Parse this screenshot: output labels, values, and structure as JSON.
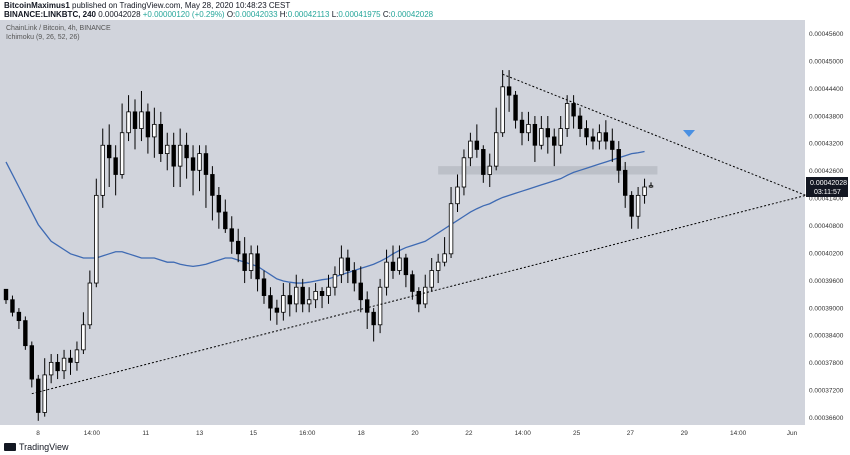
{
  "header": {
    "user": "BitcoinMaximus1",
    "published": "published on TradingView.com, May 28, 2020 10:48:23 CEST",
    "symbol": "BINANCE:LINKBTC, 240",
    "last": "0.00042028",
    "change": "+0.00000120 (+0.29%)",
    "ohlc": {
      "o_label": "O:",
      "o": "0.00042033",
      "h_label": "H:",
      "h": "0.00042113",
      "l_label": "L:",
      "l": "0.00041975",
      "c_label": "C:",
      "c": "0.00042028"
    }
  },
  "legend": {
    "title": "ChainLink / Bitcoin, 4h, BINANCE",
    "indicator": "Ichimoku (9, 26, 52, 26)"
  },
  "price_tag": {
    "price": "0.00042028",
    "countdown": "03:11:57"
  },
  "footer": {
    "brand": "TradingView"
  },
  "colors": {
    "plot_bg": "#d1d4dc",
    "candle": "#000000",
    "ma_line": "#3e6ab3",
    "resistance_zone": "#b9bcc4",
    "arrow": "#4a90e2",
    "price_tag": "#131722",
    "axis_text": "#333333"
  },
  "chart_data": {
    "type": "candlestick",
    "x_tick_labels": [
      "8",
      "14:00",
      "11",
      "13",
      "15",
      "16:00",
      "18",
      "20",
      "22",
      "14:00",
      "25",
      "27",
      "29",
      "14:00",
      "Jun"
    ],
    "y_tick_labels": [
      "0.00045600",
      "0.00045000",
      "0.00044400",
      "0.00043800",
      "0.00043200",
      "0.00042600",
      "0.00041400",
      "0.00040800",
      "0.00040200",
      "0.00039600",
      "0.00039000",
      "0.00038400",
      "0.00037800",
      "0.00037200",
      "0.00036600"
    ],
    "ylim": [
      0.000363,
      0.00046
    ],
    "candles": [
      [
        0.0003955,
        0.000393,
        0.000395,
        0.000392
      ],
      [
        0.000393,
        0.00039,
        0.000394,
        0.000389
      ],
      [
        0.00039,
        0.000388,
        0.000391,
        0.000386
      ],
      [
        0.000388,
        0.000382,
        0.000389,
        0.000381
      ],
      [
        0.000382,
        0.000374,
        0.000383,
        0.000372
      ],
      [
        0.000374,
        0.000366,
        0.000375,
        0.000364
      ],
      [
        0.000366,
        0.000375,
        0.000379,
        0.000365
      ],
      [
        0.000375,
        0.000378,
        0.00038,
        0.000373
      ],
      [
        0.000378,
        0.000376,
        0.00038,
        0.000374
      ],
      [
        0.000376,
        0.000379,
        0.000381,
        0.000374
      ],
      [
        0.000379,
        0.000378,
        0.000381,
        0.000375
      ],
      [
        0.000378,
        0.000381,
        0.000383,
        0.000376
      ],
      [
        0.000381,
        0.000387,
        0.00039,
        0.00038
      ],
      [
        0.000387,
        0.000397,
        0.0004,
        0.000386
      ],
      [
        0.000397,
        0.000418,
        0.000422,
        0.000396
      ],
      [
        0.000418,
        0.00043,
        0.000434,
        0.000415
      ],
      [
        0.00043,
        0.000427,
        0.000435,
        0.00042
      ],
      [
        0.000427,
        0.000423,
        0.00043,
        0.000418
      ],
      [
        0.000423,
        0.000433,
        0.00044,
        0.000422
      ],
      [
        0.000433,
        0.000438,
        0.000442,
        0.000431
      ],
      [
        0.000438,
        0.000434,
        0.000441,
        0.000429
      ],
      [
        0.000434,
        0.000438,
        0.000443,
        0.000431
      ],
      [
        0.000438,
        0.000432,
        0.00044,
        0.000428
      ],
      [
        0.000432,
        0.000435,
        0.000439,
        0.000427
      ],
      [
        0.000435,
        0.000428,
        0.000438,
        0.000426
      ],
      [
        0.000428,
        0.00043,
        0.000433,
        0.000424
      ],
      [
        0.00043,
        0.000425,
        0.000433,
        0.00042
      ],
      [
        0.000425,
        0.00043,
        0.000434,
        0.00042
      ],
      [
        0.00043,
        0.000427,
        0.000433,
        0.000422
      ],
      [
        0.000427,
        0.000424,
        0.00043,
        0.000418
      ],
      [
        0.000424,
        0.000428,
        0.00043,
        0.000419
      ],
      [
        0.000428,
        0.000423,
        0.00043,
        0.000415
      ],
      [
        0.000423,
        0.000418,
        0.000425,
        0.000412
      ],
      [
        0.000418,
        0.000414,
        0.00042,
        0.00041
      ],
      [
        0.000414,
        0.00041,
        0.000417,
        0.000409
      ],
      [
        0.00041,
        0.000407,
        0.000413,
        0.000404
      ],
      [
        0.000407,
        0.000404,
        0.00041,
        0.000402
      ],
      [
        0.000404,
        0.0004,
        0.000408,
        0.000397
      ],
      [
        0.0004,
        0.000404,
        0.000406,
        0.000398
      ],
      [
        0.000404,
        0.000398,
        0.000406,
        0.000395
      ],
      [
        0.000398,
        0.000394,
        0.0004,
        0.000392
      ],
      [
        0.000394,
        0.000391,
        0.000396,
        0.000388
      ],
      [
        0.000391,
        0.00039,
        0.000393,
        0.000387
      ],
      [
        0.00039,
        0.000394,
        0.000397,
        0.000388
      ],
      [
        0.000394,
        0.000392,
        0.000397,
        0.000389
      ],
      [
        0.000392,
        0.000396,
        0.000399,
        0.00039
      ],
      [
        0.000396,
        0.000392,
        0.000398,
        0.00039
      ],
      [
        0.000392,
        0.000393,
        0.000396,
        0.00039
      ],
      [
        0.000393,
        0.000395,
        0.000397,
        0.000391
      ],
      [
        0.000395,
        0.000394,
        0.000396,
        0.000391
      ],
      [
        0.000394,
        0.000396,
        0.000399,
        0.000392
      ],
      [
        0.000396,
        0.000399,
        0.000401,
        0.000394
      ],
      [
        0.000399,
        0.000403,
        0.000406,
        0.000397
      ],
      [
        0.000403,
        0.0004,
        0.000405,
        0.000397
      ],
      [
        0.0004,
        0.000397,
        0.000402,
        0.000395
      ],
      [
        0.000397,
        0.000393,
        0.000401,
        0.00039
      ],
      [
        0.000393,
        0.00039,
        0.000395,
        0.000386
      ],
      [
        0.00039,
        0.000387,
        0.000391,
        0.000383
      ],
      [
        0.000387,
        0.000396,
        0.000398,
        0.000385
      ],
      [
        0.000396,
        0.000402,
        0.000405,
        0.000394
      ],
      [
        0.000402,
        0.0004,
        0.000406,
        0.000398
      ],
      [
        0.0004,
        0.000403,
        0.000406,
        0.000399
      ],
      [
        0.000403,
        0.000399,
        0.000404,
        0.000396
      ],
      [
        0.000399,
        0.000395,
        0.0004,
        0.000393
      ],
      [
        0.000395,
        0.000392,
        0.000396,
        0.00039
      ],
      [
        0.000392,
        0.000396,
        0.000399,
        0.000391
      ],
      [
        0.000396,
        0.0004,
        0.000403,
        0.000395
      ],
      [
        0.0004,
        0.000402,
        0.000404,
        0.000397
      ],
      [
        0.000402,
        0.000404,
        0.000408,
        0.000401
      ],
      [
        0.000404,
        0.000416,
        0.00042,
        0.000403
      ],
      [
        0.000416,
        0.00042,
        0.000423,
        0.000414
      ],
      [
        0.00042,
        0.000427,
        0.000429,
        0.000418
      ],
      [
        0.000427,
        0.000431,
        0.000433,
        0.000425
      ],
      [
        0.000431,
        0.000429,
        0.000435,
        0.000427
      ],
      [
        0.000429,
        0.000423,
        0.00043,
        0.000421
      ],
      [
        0.000423,
        0.000425,
        0.000428,
        0.00042
      ],
      [
        0.000425,
        0.000433,
        0.000439,
        0.000424
      ],
      [
        0.000433,
        0.000444,
        0.000448,
        0.000432
      ],
      [
        0.000444,
        0.000442,
        0.000448,
        0.000438
      ],
      [
        0.000442,
        0.000436,
        0.000443,
        0.000434
      ],
      [
        0.000436,
        0.000433,
        0.000438,
        0.00043
      ],
      [
        0.000433,
        0.000435,
        0.000438,
        0.000431
      ],
      [
        0.000435,
        0.00043,
        0.000437,
        0.000426
      ],
      [
        0.00043,
        0.000434,
        0.000437,
        0.000429
      ],
      [
        0.000434,
        0.000432,
        0.000437,
        0.000428
      ],
      [
        0.000432,
        0.00043,
        0.000434,
        0.000425
      ],
      [
        0.00043,
        0.000434,
        0.000437,
        0.000428
      ],
      [
        0.000434,
        0.00044,
        0.000442,
        0.000432
      ],
      [
        0.00044,
        0.000437,
        0.000442,
        0.000434
      ],
      [
        0.000437,
        0.000434,
        0.000439,
        0.000432
      ],
      [
        0.000434,
        0.000432,
        0.000436,
        0.00043
      ],
      [
        0.000432,
        0.000431,
        0.000434,
        0.000429
      ],
      [
        0.000431,
        0.000433,
        0.000435,
        0.000429
      ],
      [
        0.000433,
        0.000431,
        0.000436,
        0.000429
      ],
      [
        0.000431,
        0.000429,
        0.000434,
        0.000426
      ],
      [
        0.000429,
        0.000424,
        0.000431,
        0.000421
      ],
      [
        0.000424,
        0.000418,
        0.000426,
        0.000415
      ],
      [
        0.000418,
        0.000413,
        0.000419,
        0.00041
      ],
      [
        0.000413,
        0.000418,
        0.00042,
        0.00041
      ],
      [
        0.000418,
        0.00042,
        0.000422,
        0.000416
      ],
      [
        0.00042,
        0.0004203,
        0.0004211,
        0.0004198
      ]
    ],
    "ma_line": [
      0.000426,
      0.000423,
      0.00042,
      0.000417,
      0.000414,
      0.000411,
      0.000409,
      0.000407,
      0.000406,
      0.000405,
      0.000404,
      0.0004035,
      0.000403,
      0.000403,
      0.000403,
      0.0004035,
      0.000404,
      0.0004045,
      0.0004045,
      0.000404,
      0.0004035,
      0.000403,
      0.000403,
      0.000403,
      0.0004025,
      0.000402,
      0.000402,
      0.0004015,
      0.0004012,
      0.000401,
      0.0004012,
      0.0004015,
      0.000402,
      0.0004025,
      0.000403,
      0.000403,
      0.0004025,
      0.000402,
      0.0004015,
      0.000401,
      0.0004,
      0.000399,
      0.000398,
      0.0003975,
      0.0003972,
      0.000397,
      0.000397,
      0.0003972,
      0.0003975,
      0.0003978,
      0.000398,
      0.0003985,
      0.000399,
      0.0003995,
      0.0004,
      0.0004005,
      0.000401,
      0.0004015,
      0.0004022,
      0.000403,
      0.000404,
      0.0004048,
      0.0004055,
      0.000406,
      0.0004065,
      0.000407,
      0.000408,
      0.000409,
      0.00041,
      0.000411,
      0.000412,
      0.000413,
      0.000414,
      0.0004148,
      0.0004155,
      0.000416,
      0.0004168,
      0.0004175,
      0.000418,
      0.0004185,
      0.000419,
      0.0004195,
      0.00042,
      0.0004205,
      0.000421,
      0.0004215,
      0.000422,
      0.0004228,
      0.0004235,
      0.000424,
      0.0004245,
      0.000425,
      0.0004255,
      0.000426,
      0.0004265,
      0.000427,
      0.0004275,
      0.000428,
      0.0004282,
      0.0004285
    ],
    "zone": {
      "y1": 0.000423,
      "y2": 0.000425,
      "x_from_bar": 67,
      "x_to_bar": 101
    },
    "trendline_lower": {
      "from_bar": 4,
      "from_price": 0.0003705,
      "to_bar": 124,
      "to_price": 0.000418
    },
    "trendline_upper": {
      "from_bar": 77,
      "from_price": 0.000447,
      "to_bar": 124,
      "to_price": 0.000418
    }
  }
}
